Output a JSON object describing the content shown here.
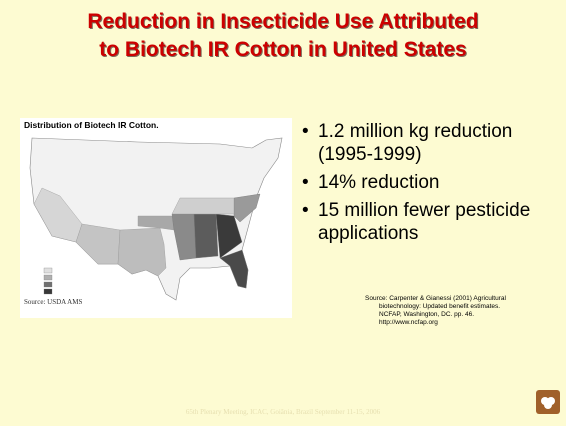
{
  "title": [
    "Reduction in Insecticide Use Attributed",
    "to Biotech IR Cotton in United States"
  ],
  "map": {
    "title": "Distribution of Biotech IR Cotton.",
    "source": "Source: USDA AMS"
  },
  "bullets": [
    "1.2 million kg reduction (1995-1999)",
    "14% reduction",
    "15 million fewer pesticide applications"
  ],
  "source": [
    "Source: Carpenter & Gianessi (2001) Agricultural",
    "biotechnology: Updated benefit estimates.",
    "NCFAP, Washington, DC. pp. 46.",
    "http://www.ncfap.org"
  ],
  "footer": "65th Plenary Meeting, ICAC, Goiânia, Brazil September 11-15, 2006"
}
